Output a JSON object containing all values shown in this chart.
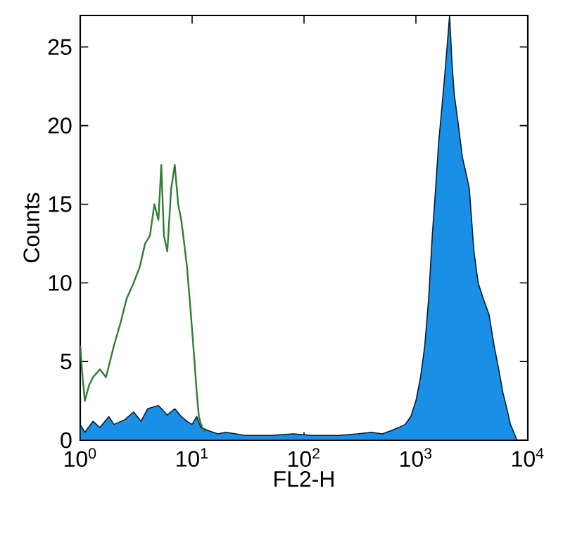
{
  "chart_data": {
    "type": "line",
    "xlabel": "FL2-H",
    "ylabel": "Counts",
    "log": "x",
    "xlim": [
      1,
      10000
    ],
    "ylim": [
      0,
      27
    ],
    "xticks": [
      {
        "value": 1,
        "label": "10$^{0}$"
      },
      {
        "value": 10,
        "label": "10$^{1}$"
      },
      {
        "value": 100,
        "label": "10$^{2}$"
      },
      {
        "value": 1000,
        "label": "10$^{3}$"
      },
      {
        "value": 10000,
        "label": "10$^{4}$"
      }
    ],
    "yticks": [
      0,
      5,
      10,
      15,
      20,
      25
    ],
    "grid": false,
    "series": [
      {
        "type": "area",
        "color": "#1a8fe6",
        "x": [
          1,
          1.1,
          1.3,
          1.5,
          1.8,
          2,
          2.5,
          3,
          3.5,
          4,
          5,
          6,
          7,
          8,
          9,
          10,
          11,
          12,
          14,
          17,
          20,
          30,
          50,
          80,
          120,
          200,
          300,
          400,
          500,
          600,
          700,
          800,
          900,
          1000,
          1100,
          1200,
          1300,
          1400,
          1500,
          1600,
          1700,
          1800,
          1900,
          2000,
          2100,
          2200,
          2400,
          2600,
          2800,
          3000,
          3300,
          3600,
          4000,
          4500,
          5000,
          5500,
          6000,
          6500,
          7000,
          7500,
          8000
        ],
        "values": [
          1,
          0.5,
          1.2,
          0.8,
          1.5,
          1,
          1.3,
          1.8,
          1.2,
          2,
          2.2,
          1.6,
          2,
          1.5,
          1.2,
          1,
          1.5,
          0.8,
          0.6,
          0.4,
          0.5,
          0.3,
          0.3,
          0.4,
          0.3,
          0.3,
          0.4,
          0.5,
          0.4,
          0.6,
          0.8,
          1,
          1.5,
          2.5,
          4,
          6,
          9,
          13,
          16,
          19,
          21,
          23,
          25,
          27,
          24,
          22,
          20,
          18,
          17,
          16,
          12,
          10,
          9,
          8,
          6,
          4.5,
          3,
          2,
          1,
          0.5,
          0
        ]
      },
      {
        "color": "#2e7d32",
        "x": [
          1,
          1.05,
          1.1,
          1.2,
          1.3,
          1.5,
          1.7,
          2,
          2.3,
          2.6,
          3,
          3.4,
          3.8,
          4.2,
          4.6,
          5,
          5.3,
          5.6,
          6,
          6.5,
          7,
          7.5,
          8,
          8.5,
          9,
          9.5,
          10,
          10.5,
          11,
          11.5,
          12,
          13
        ],
        "values": [
          6,
          4,
          2.5,
          3.5,
          4,
          4.5,
          4,
          6,
          7.5,
          9,
          10,
          11,
          12.5,
          13,
          15,
          14,
          17.5,
          13,
          12,
          16,
          17.5,
          15,
          14,
          12.5,
          11,
          9,
          7,
          5,
          3,
          1.5,
          1,
          0.5
        ]
      }
    ]
  }
}
